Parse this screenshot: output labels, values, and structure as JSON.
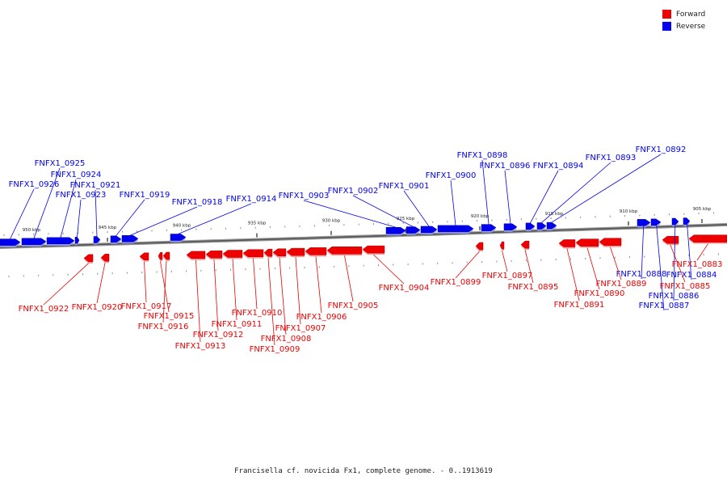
{
  "legend": {
    "forward_label": "Forward",
    "reverse_label": "Reverse",
    "forward_color": "#ee0000",
    "reverse_color": "#0000ee"
  },
  "caption": "Francisella cf. novicida Fx1, complete genome. - 0..1913619",
  "ticks": [
    {
      "label": "950 kbp",
      "kb": 950
    },
    {
      "label": "945 kbp",
      "kb": 945
    },
    {
      "label": "940 kbp",
      "kb": 940
    },
    {
      "label": "935 kbp",
      "kb": 935
    },
    {
      "label": "930 kbp",
      "kb": 930
    },
    {
      "label": "925 kbp",
      "kb": 925
    },
    {
      "label": "920 kbp",
      "kb": 920
    },
    {
      "label": "915 kbp",
      "kb": 915
    },
    {
      "label": "910 kbp",
      "kb": 910
    },
    {
      "label": "905 kbp",
      "kb": 905
    }
  ],
  "genes": [
    {
      "id": "FNFX1_0926",
      "strand": "reverse"
    },
    {
      "id": "FNFX1_0925",
      "strand": "reverse"
    },
    {
      "id": "FNFX1_0924",
      "strand": "reverse"
    },
    {
      "id": "FNFX1_0923",
      "strand": "reverse"
    },
    {
      "id": "FNFX1_0921",
      "strand": "reverse"
    },
    {
      "id": "FNFX1_0919",
      "strand": "reverse"
    },
    {
      "id": "FNFX1_0918",
      "strand": "reverse"
    },
    {
      "id": "FNFX1_0914",
      "strand": "reverse"
    },
    {
      "id": "FNFX1_0903",
      "strand": "reverse"
    },
    {
      "id": "FNFX1_0902",
      "strand": "reverse"
    },
    {
      "id": "FNFX1_0901",
      "strand": "reverse"
    },
    {
      "id": "FNFX1_0900",
      "strand": "reverse"
    },
    {
      "id": "FNFX1_0898",
      "strand": "reverse"
    },
    {
      "id": "FNFX1_0896",
      "strand": "reverse"
    },
    {
      "id": "FNFX1_0894",
      "strand": "reverse"
    },
    {
      "id": "FNFX1_0893",
      "strand": "reverse"
    },
    {
      "id": "FNFX1_0892",
      "strand": "reverse"
    },
    {
      "id": "FNFX1_0888",
      "strand": "reverse"
    },
    {
      "id": "FNFX1_0887",
      "strand": "reverse"
    },
    {
      "id": "FNFX1_0886",
      "strand": "reverse"
    },
    {
      "id": "FNFX1_0884",
      "strand": "reverse"
    },
    {
      "id": "FNFX1_0922",
      "strand": "forward"
    },
    {
      "id": "FNFX1_0920",
      "strand": "forward"
    },
    {
      "id": "FNFX1_0917",
      "strand": "forward"
    },
    {
      "id": "FNFX1_0915",
      "strand": "forward"
    },
    {
      "id": "FNFX1_0916",
      "strand": "forward"
    },
    {
      "id": "FNFX1_0913",
      "strand": "forward"
    },
    {
      "id": "FNFX1_0912",
      "strand": "forward"
    },
    {
      "id": "FNFX1_0911",
      "strand": "forward"
    },
    {
      "id": "FNFX1_0910",
      "strand": "forward"
    },
    {
      "id": "FNFX1_0909",
      "strand": "forward"
    },
    {
      "id": "FNFX1_0908",
      "strand": "forward"
    },
    {
      "id": "FNFX1_0907",
      "strand": "forward"
    },
    {
      "id": "FNFX1_0906",
      "strand": "forward"
    },
    {
      "id": "FNFX1_0905",
      "strand": "forward"
    },
    {
      "id": "FNFX1_0904",
      "strand": "forward"
    },
    {
      "id": "FNFX1_0899",
      "strand": "forward"
    },
    {
      "id": "FNFX1_0897",
      "strand": "forward"
    },
    {
      "id": "FNFX1_0895",
      "strand": "forward"
    },
    {
      "id": "FNFX1_0891",
      "strand": "forward"
    },
    {
      "id": "FNFX1_0890",
      "strand": "forward"
    },
    {
      "id": "FNFX1_0889",
      "strand": "forward"
    },
    {
      "id": "FNFX1_0885",
      "strand": "forward"
    },
    {
      "id": "FNFX1_0883",
      "strand": "forward"
    }
  ]
}
